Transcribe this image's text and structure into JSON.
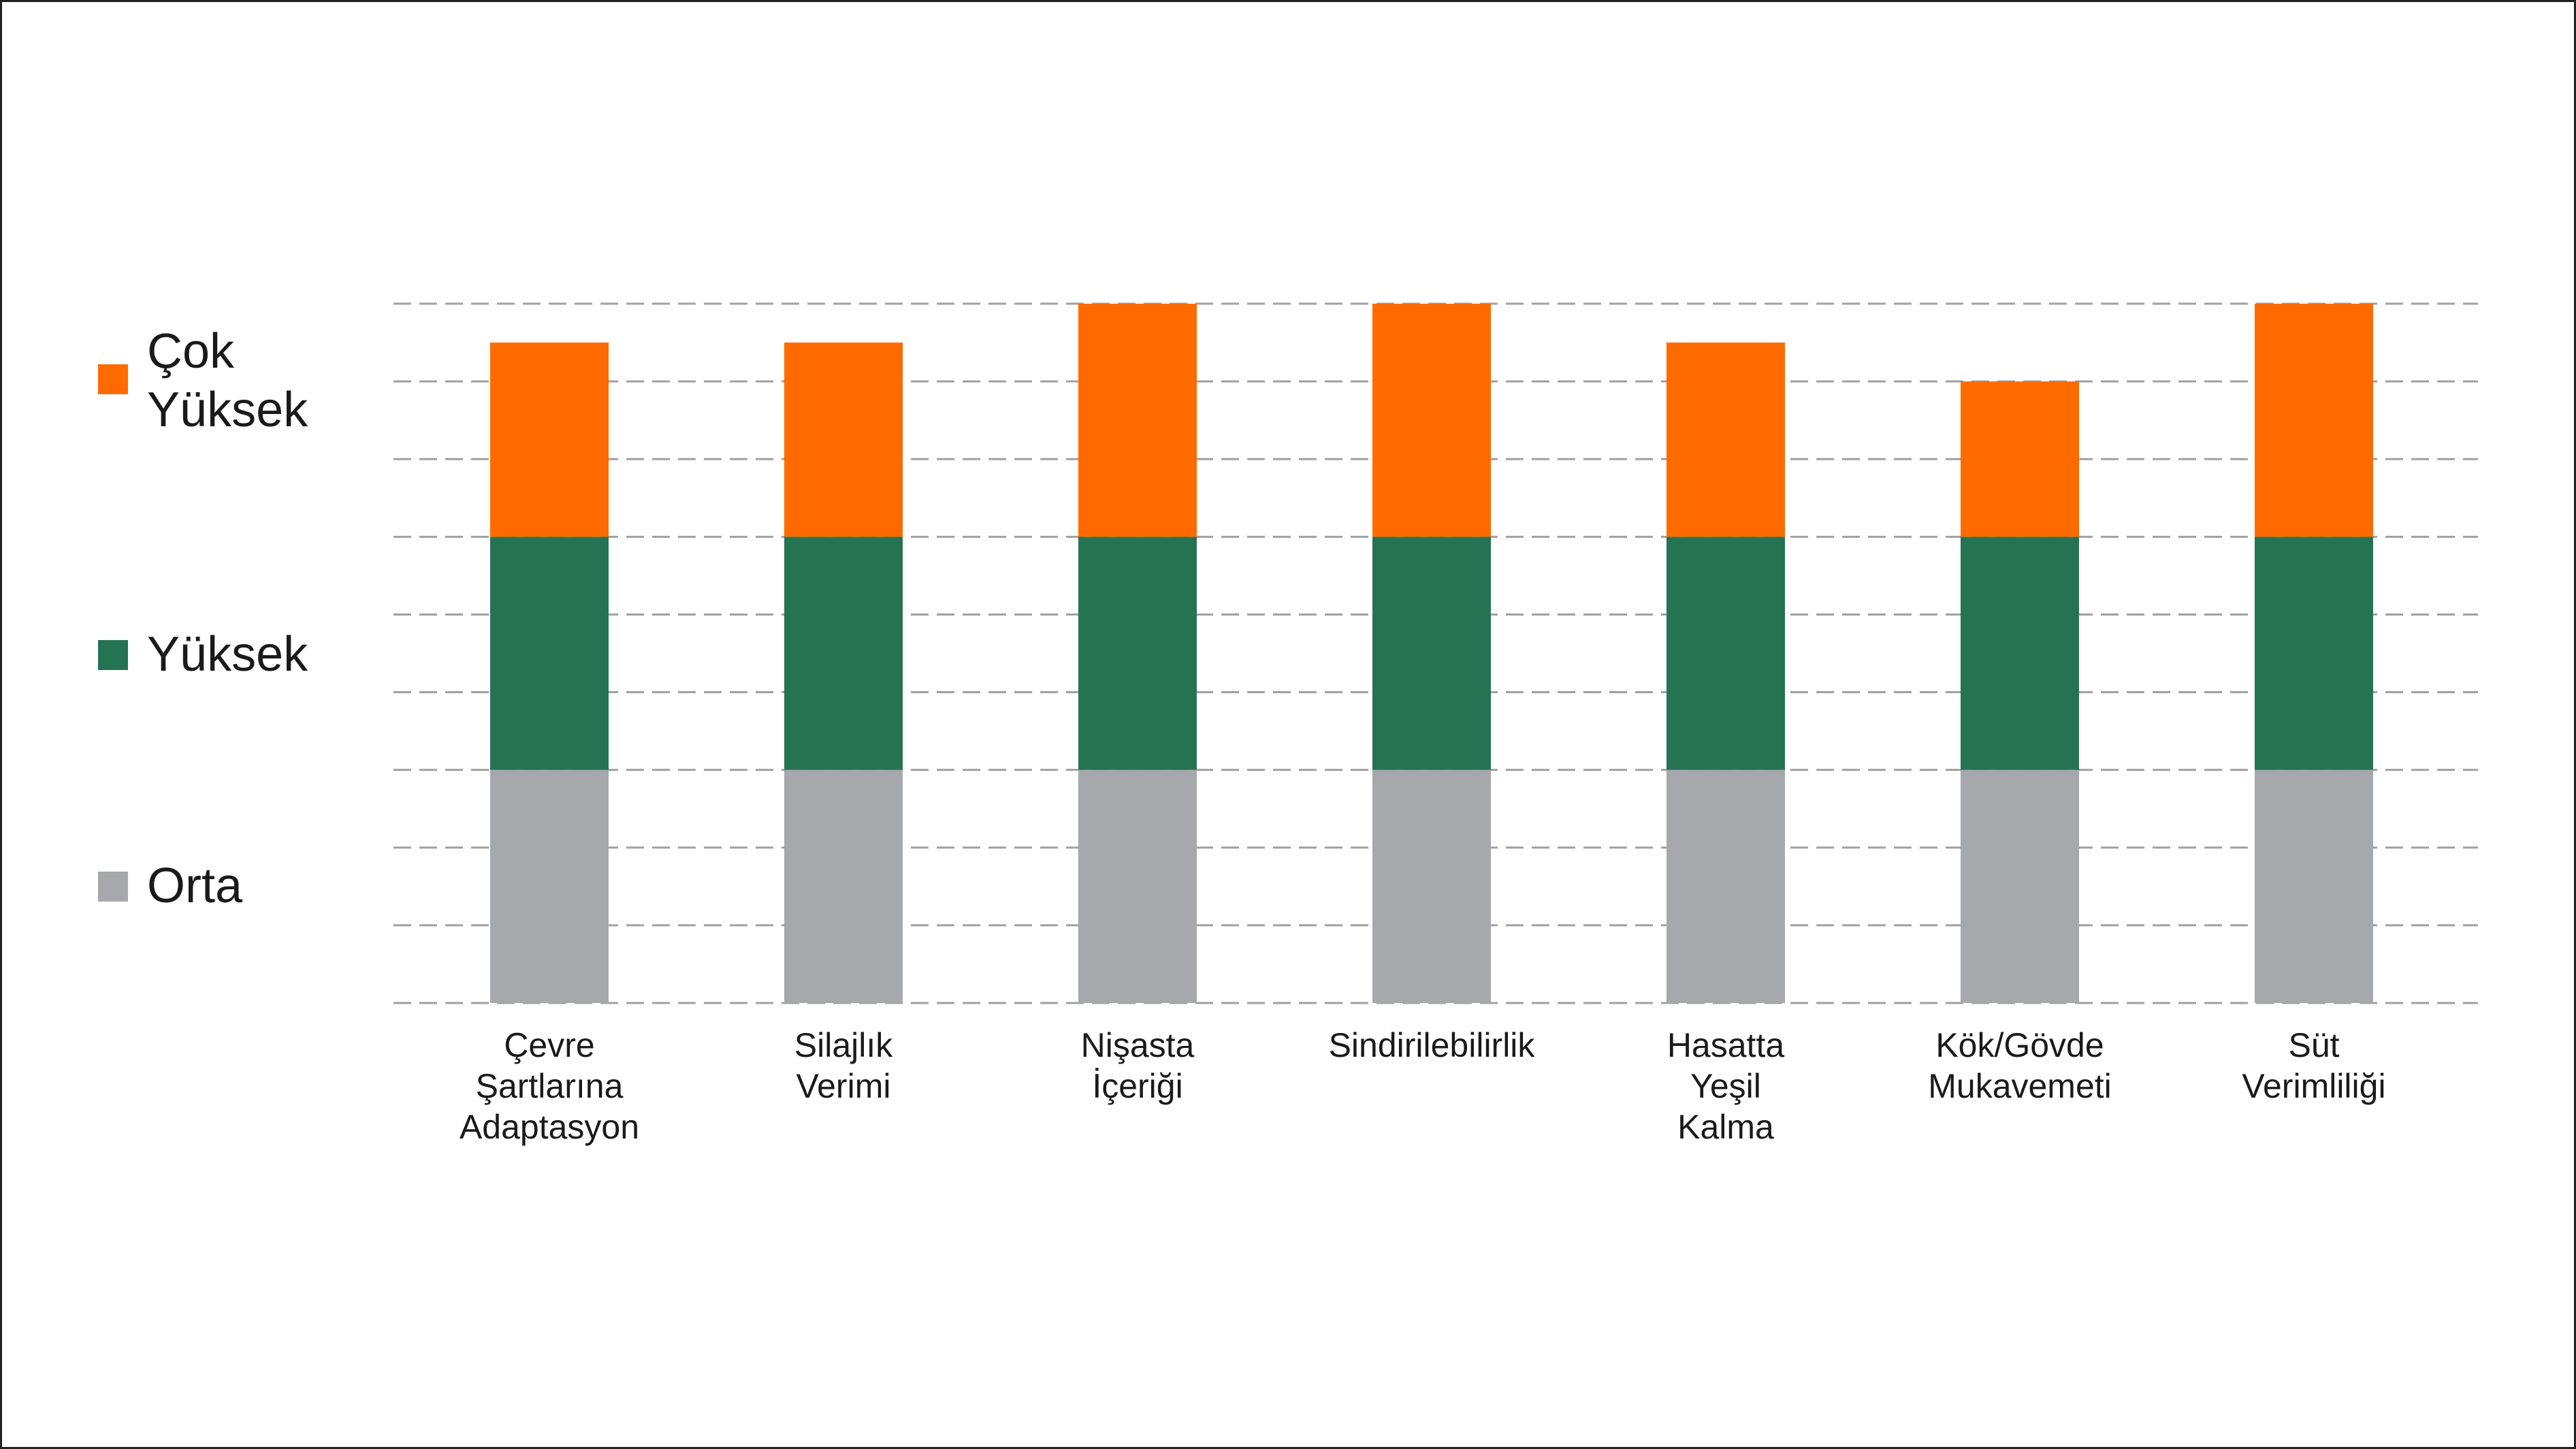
{
  "chart_data": {
    "type": "bar",
    "stacked": true,
    "categories": [
      [
        "Çevre",
        "Şartlarına",
        "Adaptasyon"
      ],
      [
        "Silajlık",
        "Verimi"
      ],
      [
        "Nişasta",
        "İçeriği"
      ],
      [
        "Sindirilebilirlik"
      ],
      [
        "Hasatta",
        "Yeşil",
        "Kalma"
      ],
      [
        "Kök/Gövde",
        "Mukavemeti"
      ],
      [
        "Süt",
        "Verimliliği"
      ]
    ],
    "series": [
      {
        "name": "Orta",
        "color": "#a7a8ab",
        "values": [
          3,
          3,
          3,
          3,
          3,
          3,
          3
        ]
      },
      {
        "name": "Yüksek",
        "color": "#267354",
        "values": [
          3,
          3,
          3,
          3,
          3,
          3,
          3
        ]
      },
      {
        "name": "Çok Yüksek",
        "color": "#ff6b00",
        "values": [
          2.5,
          2.5,
          3,
          3,
          2.5,
          2,
          3
        ]
      }
    ],
    "ylim": [
      0,
      9
    ],
    "grid": true,
    "grid_style": "dashed",
    "legend_position": "left",
    "legend": [
      {
        "lines": [
          "Çok",
          "Yüksek"
        ],
        "color": "#ff6b00"
      },
      {
        "lines": [
          "Yüksek"
        ],
        "color": "#267354"
      },
      {
        "lines": [
          "Orta"
        ],
        "color": "#a7a8ab"
      }
    ]
  }
}
